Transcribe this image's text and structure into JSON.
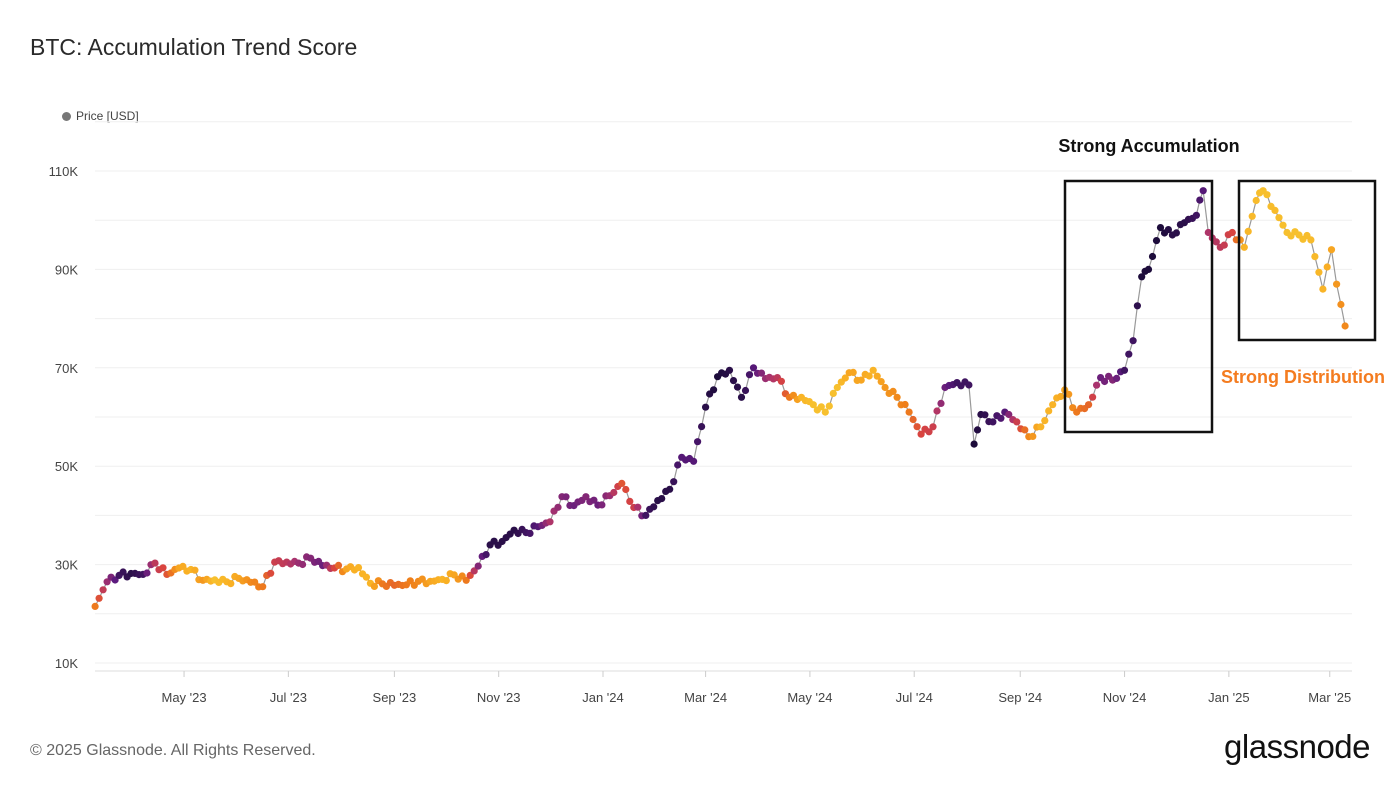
{
  "chart_data": {
    "type": "scatter",
    "title": "BTC: Accumulation Trend Score",
    "legend": {
      "label": "Price [USD]",
      "placement": "top-left",
      "color": "#777777"
    },
    "xlabel": "",
    "ylabel": "",
    "ylim": [
      10000,
      120000
    ],
    "y_ticks": [
      {
        "value": 10000,
        "label": "10K"
      },
      {
        "value": 30000,
        "label": "30K"
      },
      {
        "value": 50000,
        "label": "50K"
      },
      {
        "value": 70000,
        "label": "70K"
      },
      {
        "value": 90000,
        "label": "90K"
      },
      {
        "value": 110000,
        "label": "110K"
      }
    ],
    "x_ticks": [
      {
        "date": "2023-05-01",
        "label": "May '23"
      },
      {
        "date": "2023-07-01",
        "label": "Jul '23"
      },
      {
        "date": "2023-09-01",
        "label": "Sep '23"
      },
      {
        "date": "2023-11-01",
        "label": "Nov '23"
      },
      {
        "date": "2024-01-01",
        "label": "Jan '24"
      },
      {
        "date": "2024-03-01",
        "label": "Mar '24"
      },
      {
        "date": "2024-05-01",
        "label": "May '24"
      },
      {
        "date": "2024-07-01",
        "label": "Jul '24"
      },
      {
        "date": "2024-09-01",
        "label": "Sep '24"
      },
      {
        "date": "2024-11-01",
        "label": "Nov '24"
      },
      {
        "date": "2025-01-01",
        "label": "Jan '25"
      },
      {
        "date": "2025-03-01",
        "label": "Mar '25"
      }
    ],
    "grid": true,
    "color_scale": {
      "low": "#f4d93e",
      "high": "#140a32",
      "stops": [
        "#f4d93e",
        "#f9b024",
        "#ef7f1a",
        "#d9443f",
        "#a9336e",
        "#5c1a7e",
        "#140a32"
      ]
    },
    "line_color": "#999999",
    "points": [
      [
        "2023-03-10",
        21500,
        0.35
      ],
      [
        "2023-03-17",
        26500,
        0.7
      ],
      [
        "2023-03-24",
        27800,
        0.9
      ],
      [
        "2023-03-31",
        28200,
        0.95
      ],
      [
        "2023-04-07",
        28000,
        0.9
      ],
      [
        "2023-04-14",
        30300,
        0.6
      ],
      [
        "2023-04-21",
        28000,
        0.45
      ],
      [
        "2023-04-28",
        29300,
        0.2
      ],
      [
        "2023-05-05",
        29000,
        0.15
      ],
      [
        "2023-05-12",
        26800,
        0.25
      ],
      [
        "2023-05-19",
        26900,
        0.1
      ],
      [
        "2023-05-26",
        26500,
        0.15
      ],
      [
        "2023-06-02",
        27200,
        0.2
      ],
      [
        "2023-06-09",
        26400,
        0.3
      ],
      [
        "2023-06-16",
        25500,
        0.35
      ],
      [
        "2023-06-23",
        30500,
        0.55
      ],
      [
        "2023-06-30",
        30500,
        0.6
      ],
      [
        "2023-07-07",
        30300,
        0.7
      ],
      [
        "2023-07-14",
        31300,
        0.75
      ],
      [
        "2023-07-21",
        29800,
        0.8
      ],
      [
        "2023-07-28",
        29300,
        0.5
      ],
      [
        "2023-08-04",
        29100,
        0.2
      ],
      [
        "2023-08-11",
        29400,
        0.15
      ],
      [
        "2023-08-18",
        26200,
        0.15
      ],
      [
        "2023-08-25",
        26100,
        0.35
      ],
      [
        "2023-09-01",
        25800,
        0.4
      ],
      [
        "2023-09-08",
        25900,
        0.35
      ],
      [
        "2023-09-15",
        26600,
        0.3
      ],
      [
        "2023-09-22",
        26600,
        0.2
      ],
      [
        "2023-09-29",
        27000,
        0.15
      ],
      [
        "2023-10-06",
        27900,
        0.2
      ],
      [
        "2023-10-13",
        26800,
        0.35
      ],
      [
        "2023-10-20",
        29700,
        0.75
      ],
      [
        "2023-10-27",
        34000,
        0.95
      ],
      [
        "2023-11-03",
        34700,
        0.95
      ],
      [
        "2023-11-10",
        37000,
        0.95
      ],
      [
        "2023-11-17",
        36500,
        0.9
      ],
      [
        "2023-11-24",
        37700,
        0.85
      ],
      [
        "2023-12-01",
        38700,
        0.65
      ],
      [
        "2023-12-08",
        43800,
        0.75
      ],
      [
        "2023-12-15",
        42000,
        0.8
      ],
      [
        "2023-12-22",
        43800,
        0.75
      ],
      [
        "2023-12-29",
        42100,
        0.8
      ],
      [
        "2024-01-05",
        44000,
        0.7
      ],
      [
        "2024-01-12",
        46500,
        0.45
      ],
      [
        "2024-01-19",
        41600,
        0.55
      ],
      [
        "2024-01-26",
        40000,
        0.9
      ],
      [
        "2024-02-02",
        43000,
        0.95
      ],
      [
        "2024-02-09",
        45300,
        0.95
      ],
      [
        "2024-02-16",
        51800,
        0.85
      ],
      [
        "2024-02-23",
        51000,
        0.85
      ],
      [
        "2024-03-01",
        62000,
        0.95
      ],
      [
        "2024-03-08",
        68200,
        0.98
      ],
      [
        "2024-03-15",
        69500,
        0.95
      ],
      [
        "2024-03-22",
        64000,
        0.95
      ],
      [
        "2024-03-29",
        70000,
        0.85
      ],
      [
        "2024-04-05",
        67800,
        0.7
      ],
      [
        "2024-04-12",
        68000,
        0.6
      ],
      [
        "2024-04-19",
        64000,
        0.35
      ],
      [
        "2024-04-26",
        64000,
        0.15
      ],
      [
        "2024-05-03",
        62500,
        0.1
      ],
      [
        "2024-05-10",
        61000,
        0.1
      ],
      [
        "2024-05-17",
        66000,
        0.1
      ],
      [
        "2024-05-24",
        69000,
        0.2
      ],
      [
        "2024-05-31",
        67500,
        0.2
      ],
      [
        "2024-06-07",
        69500,
        0.15
      ],
      [
        "2024-06-14",
        66000,
        0.25
      ],
      [
        "2024-06-21",
        64000,
        0.3
      ],
      [
        "2024-06-28",
        61000,
        0.35
      ],
      [
        "2024-07-05",
        56500,
        0.5
      ],
      [
        "2024-07-12",
        58000,
        0.55
      ],
      [
        "2024-07-19",
        66000,
        0.8
      ],
      [
        "2024-07-26",
        67000,
        0.9
      ],
      [
        "2024-08-02",
        66500,
        0.9
      ],
      [
        "2024-08-05",
        54500,
        0.98
      ],
      [
        "2024-08-09",
        60500,
        0.95
      ],
      [
        "2024-08-16",
        59000,
        0.9
      ],
      [
        "2024-08-23",
        61000,
        0.85
      ],
      [
        "2024-08-30",
        59000,
        0.55
      ],
      [
        "2024-09-06",
        56000,
        0.3
      ],
      [
        "2024-09-13",
        58000,
        0.15
      ],
      [
        "2024-09-20",
        62500,
        0.15
      ],
      [
        "2024-09-27",
        65500,
        0.2
      ],
      [
        "2024-10-04",
        61000,
        0.35
      ],
      [
        "2024-10-11",
        62500,
        0.4
      ],
      [
        "2024-10-18",
        68000,
        0.8
      ],
      [
        "2024-10-25",
        67500,
        0.75
      ],
      [
        "2024-11-01",
        69500,
        0.9
      ],
      [
        "2024-11-06",
        75500,
        0.9
      ],
      [
        "2024-11-11",
        88500,
        0.98
      ],
      [
        "2024-11-15",
        90000,
        0.98
      ],
      [
        "2024-11-22",
        98500,
        0.98
      ],
      [
        "2024-11-29",
        97000,
        0.95
      ],
      [
        "2024-12-06",
        99500,
        0.95
      ],
      [
        "2024-12-13",
        101000,
        0.9
      ],
      [
        "2024-12-17",
        106000,
        0.85
      ],
      [
        "2024-12-20",
        97500,
        0.65
      ],
      [
        "2024-12-27",
        94500,
        0.6
      ],
      [
        "2025-01-03",
        97500,
        0.5
      ],
      [
        "2025-01-10",
        94500,
        0.15
      ],
      [
        "2025-01-17",
        104000,
        0.12
      ],
      [
        "2025-01-21",
        106000,
        0.1
      ],
      [
        "2025-01-28",
        102000,
        0.12
      ],
      [
        "2025-02-04",
        97500,
        0.1
      ],
      [
        "2025-02-11",
        97000,
        0.1
      ],
      [
        "2025-02-18",
        96000,
        0.12
      ],
      [
        "2025-02-25",
        86000,
        0.15
      ],
      [
        "2025-03-02",
        94000,
        0.2
      ],
      [
        "2025-03-05",
        87000,
        0.25
      ],
      [
        "2025-03-10",
        78500,
        0.3
      ]
    ],
    "annotations": [
      {
        "text": "Strong Accumulation",
        "color": "#111111"
      },
      {
        "text": "Strong Distribution",
        "color": "#f47c20"
      }
    ]
  },
  "footer": {
    "copyright": "© 2025 Glassnode. All Rights Reserved.",
    "logo": "glassnode"
  }
}
